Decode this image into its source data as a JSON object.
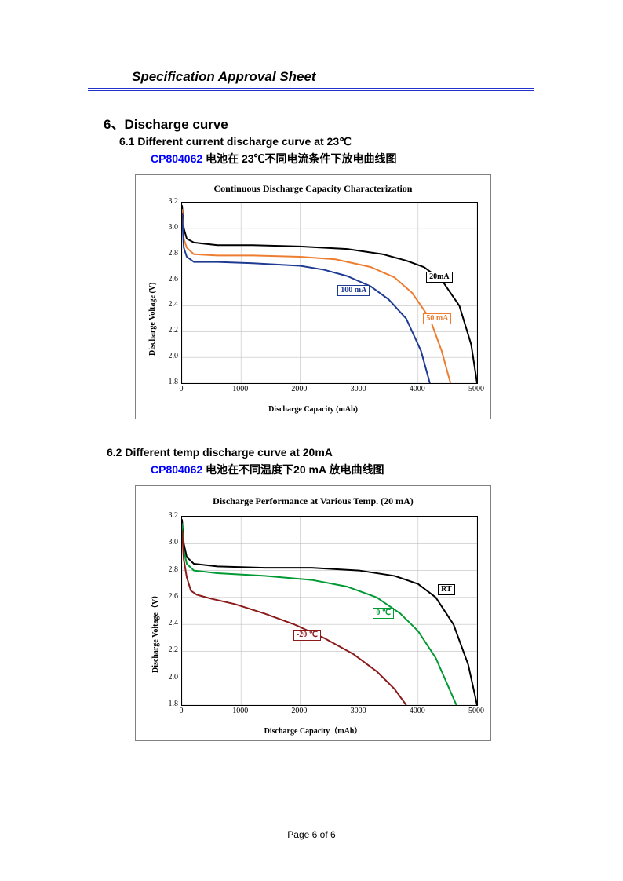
{
  "header": {
    "title": "Specification Approval Sheet"
  },
  "colors": {
    "rule": "#2233cc",
    "product_code": "#0000ff",
    "grid": "#c0c0c0",
    "tick_font": "#000000"
  },
  "section": {
    "number_label": "6、Discharge curve",
    "sub1": {
      "heading": "6.1 Different current discharge curve at 23℃",
      "product": "CP804062",
      "desc_rest": " 电池在 23℃不同电流条件下放电曲线图"
    },
    "sub2": {
      "heading": "6.2 Different temp discharge curve at 20mA",
      "product": "CP804062",
      "desc_rest": " 电池在不同温度下20 mA 放电曲线图"
    }
  },
  "chart1": {
    "type": "line",
    "title": "Continuous Discharge Capacity Characterization",
    "title_fontsize": 12,
    "xlabel": "Discharge Capacity (mAh)",
    "ylabel": "Discharge Voltage (V)",
    "label_fontsize": 10,
    "tick_fontsize": 10,
    "xlim": [
      0,
      5000
    ],
    "xtick_step": 1000,
    "ylim": [
      1.8,
      3.2
    ],
    "ytick_step": 0.2,
    "line_width": 2,
    "background_color": "#ffffff",
    "grid_color": "#c0c0c0",
    "series": [
      {
        "name": "20mA",
        "label": "20mA",
        "color": "#000000",
        "label_xy": [
          4150,
          2.62
        ],
        "data": [
          [
            0,
            3.18
          ],
          [
            30,
            3.0
          ],
          [
            80,
            2.92
          ],
          [
            200,
            2.89
          ],
          [
            600,
            2.87
          ],
          [
            1200,
            2.87
          ],
          [
            2000,
            2.86
          ],
          [
            2800,
            2.84
          ],
          [
            3400,
            2.8
          ],
          [
            3800,
            2.75
          ],
          [
            4100,
            2.7
          ],
          [
            4400,
            2.6
          ],
          [
            4700,
            2.4
          ],
          [
            4900,
            2.1
          ],
          [
            5000,
            1.8
          ]
        ]
      },
      {
        "name": "50mA",
        "label": "50 mA",
        "color": "#ed7d31",
        "label_xy": [
          4100,
          2.3
        ],
        "data": [
          [
            0,
            3.15
          ],
          [
            30,
            2.92
          ],
          [
            80,
            2.85
          ],
          [
            200,
            2.8
          ],
          [
            600,
            2.79
          ],
          [
            1200,
            2.79
          ],
          [
            2000,
            2.78
          ],
          [
            2600,
            2.76
          ],
          [
            3200,
            2.7
          ],
          [
            3600,
            2.62
          ],
          [
            3900,
            2.5
          ],
          [
            4200,
            2.3
          ],
          [
            4400,
            2.05
          ],
          [
            4550,
            1.8
          ]
        ]
      },
      {
        "name": "100mA",
        "label": "100 mA",
        "color": "#1f3a93",
        "label_xy": [
          2650,
          2.52
        ],
        "data": [
          [
            0,
            3.12
          ],
          [
            30,
            2.85
          ],
          [
            80,
            2.78
          ],
          [
            200,
            2.74
          ],
          [
            600,
            2.74
          ],
          [
            1200,
            2.73
          ],
          [
            2000,
            2.71
          ],
          [
            2400,
            2.68
          ],
          [
            2800,
            2.63
          ],
          [
            3200,
            2.55
          ],
          [
            3500,
            2.45
          ],
          [
            3800,
            2.3
          ],
          [
            4050,
            2.05
          ],
          [
            4200,
            1.8
          ]
        ]
      }
    ]
  },
  "chart2": {
    "type": "line",
    "title": "Discharge Performance at Various Temp. (20 mA)",
    "title_fontsize": 12,
    "xlabel": "Discharge Capacity（mAh）",
    "ylabel": "Discharge Voltage（V）",
    "label_fontsize": 10,
    "tick_fontsize": 10,
    "xlim": [
      0,
      5000
    ],
    "xtick_step": 1000,
    "ylim": [
      1.8,
      3.2
    ],
    "ytick_step": 0.2,
    "line_width": 2,
    "background_color": "#ffffff",
    "grid_color": "#c0c0c0",
    "series": [
      {
        "name": "RT",
        "label": "RT",
        "color": "#000000",
        "label_xy": [
          4350,
          2.66
        ],
        "data": [
          [
            0,
            3.18
          ],
          [
            30,
            3.0
          ],
          [
            80,
            2.9
          ],
          [
            200,
            2.85
          ],
          [
            600,
            2.83
          ],
          [
            1400,
            2.82
          ],
          [
            2200,
            2.82
          ],
          [
            3000,
            2.8
          ],
          [
            3600,
            2.76
          ],
          [
            4000,
            2.7
          ],
          [
            4300,
            2.6
          ],
          [
            4600,
            2.4
          ],
          [
            4850,
            2.1
          ],
          [
            5000,
            1.8
          ]
        ]
      },
      {
        "name": "0C",
        "label": "0 ℃",
        "color": "#009933",
        "label_xy": [
          3250,
          2.48
        ],
        "data": [
          [
            0,
            3.15
          ],
          [
            30,
            2.95
          ],
          [
            80,
            2.85
          ],
          [
            200,
            2.8
          ],
          [
            600,
            2.78
          ],
          [
            1400,
            2.76
          ],
          [
            2200,
            2.73
          ],
          [
            2800,
            2.68
          ],
          [
            3300,
            2.6
          ],
          [
            3700,
            2.48
          ],
          [
            4000,
            2.35
          ],
          [
            4300,
            2.15
          ],
          [
            4500,
            1.95
          ],
          [
            4650,
            1.8
          ]
        ]
      },
      {
        "name": "-20C",
        "label": "-20 ℃",
        "color": "#8b1a1a",
        "label_xy": [
          1900,
          2.32
        ],
        "data": [
          [
            0,
            3.1
          ],
          [
            30,
            2.88
          ],
          [
            80,
            2.75
          ],
          [
            150,
            2.65
          ],
          [
            250,
            2.62
          ],
          [
            500,
            2.59
          ],
          [
            900,
            2.55
          ],
          [
            1400,
            2.48
          ],
          [
            1900,
            2.4
          ],
          [
            2400,
            2.3
          ],
          [
            2900,
            2.18
          ],
          [
            3300,
            2.05
          ],
          [
            3600,
            1.92
          ],
          [
            3800,
            1.8
          ]
        ]
      }
    ]
  },
  "footer": {
    "text": "Page 6 of 6"
  }
}
